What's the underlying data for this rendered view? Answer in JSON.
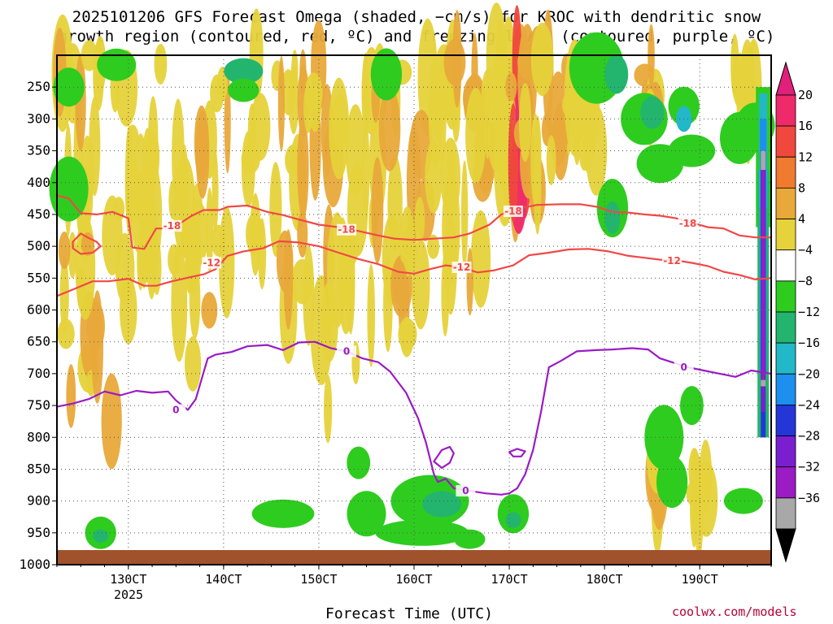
{
  "title": {
    "line1": "2025101206 GFS Forecast Omega (shaded, −cm/s) for KROC with dendritic snow",
    "line2": "growth region (contoured, red, ºC) and freezing level (contoured, purple, ºC)"
  },
  "credit": "coolwx.com/models",
  "chart_data": {
    "type": "heatmap",
    "xlabel": "Forecast Time (UTC)",
    "ylabel": "",
    "year_label": "2025",
    "x_ticks": [
      {
        "label": "130CT",
        "hours": 18
      },
      {
        "label": "140CT",
        "hours": 42
      },
      {
        "label": "150CT",
        "hours": 66
      },
      {
        "label": "160CT",
        "hours": 90
      },
      {
        "label": "170CT",
        "hours": 114
      },
      {
        "label": "180CT",
        "hours": 138
      },
      {
        "label": "190CT",
        "hours": 162
      }
    ],
    "x_range_hours": [
      0,
      180
    ],
    "y_ticks": [
      250,
      300,
      350,
      400,
      450,
      500,
      550,
      600,
      650,
      700,
      750,
      800,
      850,
      900,
      950,
      1000
    ],
    "y_range_hpa": [
      200,
      1000
    ],
    "colorbar": {
      "labels": [
        "20",
        "16",
        "12",
        "8",
        "4",
        "−4",
        "−8",
        "−12",
        "−16",
        "−20",
        "−24",
        "−28",
        "−32",
        "−36"
      ],
      "colors": [
        "#ef2a6b",
        "#f0483d",
        "#f07a2e",
        "#e8a93a",
        "#e6d23a",
        "#ffffff",
        "#2ecc1f",
        "#23b56e",
        "#22b8c8",
        "#1c8fef",
        "#2436d8",
        "#7a1fd0",
        "#9b1bc4",
        "#a8a8a8"
      ],
      "top_arrow_color": "#e0207a",
      "bottom_arrow_color": "#000000"
    },
    "contours": {
      "dgz_color": "#f04848",
      "freezing_color": "#9b1bc4",
      "labels": [
        "-18",
        "-12",
        "0"
      ],
      "m18": [
        [
          0,
          420
        ],
        [
          3,
          425
        ],
        [
          6,
          448
        ],
        [
          10,
          450
        ],
        [
          14,
          446
        ],
        [
          18,
          456
        ],
        [
          19,
          502
        ],
        [
          22,
          504
        ],
        [
          25,
          472
        ],
        [
          29,
          472
        ],
        [
          34,
          452
        ],
        [
          37,
          443
        ],
        [
          41,
          443
        ],
        [
          43,
          438
        ],
        [
          48,
          436
        ],
        [
          53,
          446
        ],
        [
          57,
          451
        ],
        [
          61,
          458
        ],
        [
          66,
          466
        ],
        [
          71,
          470
        ],
        [
          76,
          476
        ],
        [
          81,
          483
        ],
        [
          85,
          488
        ],
        [
          90,
          490
        ],
        [
          95,
          488
        ],
        [
          100,
          486
        ],
        [
          104,
          480
        ],
        [
          109,
          466
        ],
        [
          112,
          450
        ],
        [
          117,
          440
        ],
        [
          121,
          435
        ],
        [
          127,
          434
        ],
        [
          132,
          434
        ],
        [
          136,
          438
        ],
        [
          140,
          446
        ],
        [
          144,
          447
        ],
        [
          148,
          450
        ],
        [
          152,
          452
        ],
        [
          156,
          456
        ],
        [
          160,
          463
        ],
        [
          164,
          470
        ],
        [
          168,
          472
        ],
        [
          172,
          483
        ],
        [
          176,
          486
        ],
        [
          180,
          486
        ]
      ],
      "m12": [
        [
          0,
          578
        ],
        [
          4,
          568
        ],
        [
          9,
          555
        ],
        [
          13,
          555
        ],
        [
          18,
          551
        ],
        [
          22,
          562
        ],
        [
          25,
          562
        ],
        [
          29,
          555
        ],
        [
          34,
          548
        ],
        [
          37,
          544
        ],
        [
          40,
          536
        ],
        [
          43,
          515
        ],
        [
          47,
          508
        ],
        [
          52,
          503
        ],
        [
          56,
          492
        ],
        [
          61,
          494
        ],
        [
          66,
          500
        ],
        [
          71,
          510
        ],
        [
          76,
          520
        ],
        [
          81,
          528
        ],
        [
          86,
          540
        ],
        [
          90,
          543
        ],
        [
          94,
          536
        ],
        [
          98,
          530
        ],
        [
          102,
          533
        ],
        [
          106,
          541
        ],
        [
          110,
          538
        ],
        [
          115,
          530
        ],
        [
          119,
          514
        ],
        [
          124,
          510
        ],
        [
          129,
          505
        ],
        [
          134,
          504
        ],
        [
          139,
          508
        ],
        [
          144,
          515
        ],
        [
          148,
          518
        ],
        [
          152,
          521
        ],
        [
          156,
          522
        ],
        [
          160,
          526
        ],
        [
          164,
          531
        ],
        [
          168,
          540
        ],
        [
          172,
          545
        ],
        [
          176,
          552
        ],
        [
          180,
          550
        ]
      ],
      "m12_blob": [
        [
          4,
          493
        ],
        [
          6,
          480
        ],
        [
          8,
          487
        ],
        [
          10,
          493
        ],
        [
          11,
          500
        ],
        [
          9,
          510
        ],
        [
          6,
          512
        ],
        [
          4,
          503
        ]
      ],
      "zero": [
        [
          0,
          752
        ],
        [
          4,
          747
        ],
        [
          8,
          740
        ],
        [
          12,
          728
        ],
        [
          16,
          734
        ],
        [
          20,
          727
        ],
        [
          24,
          730
        ],
        [
          28,
          728
        ],
        [
          30,
          742
        ],
        [
          33,
          757
        ],
        [
          35,
          740
        ],
        [
          37,
          697
        ],
        [
          38,
          676
        ],
        [
          40,
          670
        ],
        [
          44,
          666
        ],
        [
          48,
          657
        ],
        [
          53,
          655
        ],
        [
          57,
          663
        ],
        [
          61,
          651
        ],
        [
          65,
          650
        ],
        [
          69,
          660
        ],
        [
          73,
          665
        ],
        [
          77,
          676
        ],
        [
          81,
          682
        ],
        [
          84,
          697
        ],
        [
          88,
          730
        ],
        [
          91,
          770
        ],
        [
          93,
          808
        ],
        [
          95,
          858
        ],
        [
          96,
          870
        ],
        [
          98,
          865
        ],
        [
          100,
          880
        ],
        [
          104,
          884
        ],
        [
          108,
          888
        ],
        [
          112,
          890
        ],
        [
          114,
          888
        ],
        [
          116,
          880
        ],
        [
          118,
          858
        ],
        [
          120,
          820
        ],
        [
          122,
          760
        ],
        [
          124,
          690
        ],
        [
          127,
          680
        ],
        [
          131,
          665
        ],
        [
          136,
          663
        ],
        [
          140,
          662
        ],
        [
          145,
          660
        ],
        [
          149,
          662
        ],
        [
          152,
          676
        ],
        [
          155,
          682
        ],
        [
          159,
          690
        ],
        [
          163,
          695
        ],
        [
          167,
          700
        ],
        [
          171,
          705
        ],
        [
          175,
          695
        ],
        [
          180,
          700
        ]
      ],
      "zero_blob1": [
        [
          95,
          838
        ],
        [
          97,
          820
        ],
        [
          99,
          815
        ],
        [
          100,
          825
        ],
        [
          99,
          840
        ],
        [
          97,
          848
        ]
      ],
      "zero_blob2": [
        [
          114,
          823
        ],
        [
          116,
          818
        ],
        [
          118,
          822
        ],
        [
          117,
          830
        ],
        [
          115,
          830
        ]
      ]
    }
  }
}
